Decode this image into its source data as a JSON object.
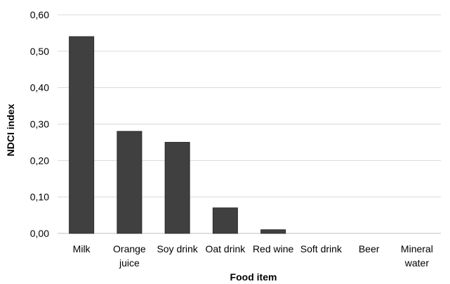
{
  "chart_data": {
    "type": "bar",
    "categories": [
      "Milk",
      "Orange juice",
      "Soy drink",
      "Oat drink",
      "Red wine",
      "Soft drink",
      "Beer",
      "Mineral water"
    ],
    "category_label_lines": [
      [
        "Milk"
      ],
      [
        "Orange",
        "juice"
      ],
      [
        "Soy drink"
      ],
      [
        "Oat drink"
      ],
      [
        "Red wine"
      ],
      [
        "Soft drink"
      ],
      [
        "Beer"
      ],
      [
        "Mineral",
        "water"
      ]
    ],
    "values": [
      0.54,
      0.28,
      0.25,
      0.07,
      0.01,
      0.0,
      0.0,
      0.0
    ],
    "title": "",
    "xlabel": "Food item",
    "ylabel": "NDCI index",
    "ylim": [
      0,
      0.6
    ],
    "yticks": [
      0.0,
      0.1,
      0.2,
      0.3,
      0.4,
      0.5,
      0.6
    ],
    "ytick_labels": [
      "0,00",
      "0,10",
      "0,20",
      "0,30",
      "0,40",
      "0,50",
      "0,60"
    ],
    "grid": true,
    "legend": "none",
    "bar_color": "#404040",
    "gridline_color": "#d9d9d9"
  }
}
